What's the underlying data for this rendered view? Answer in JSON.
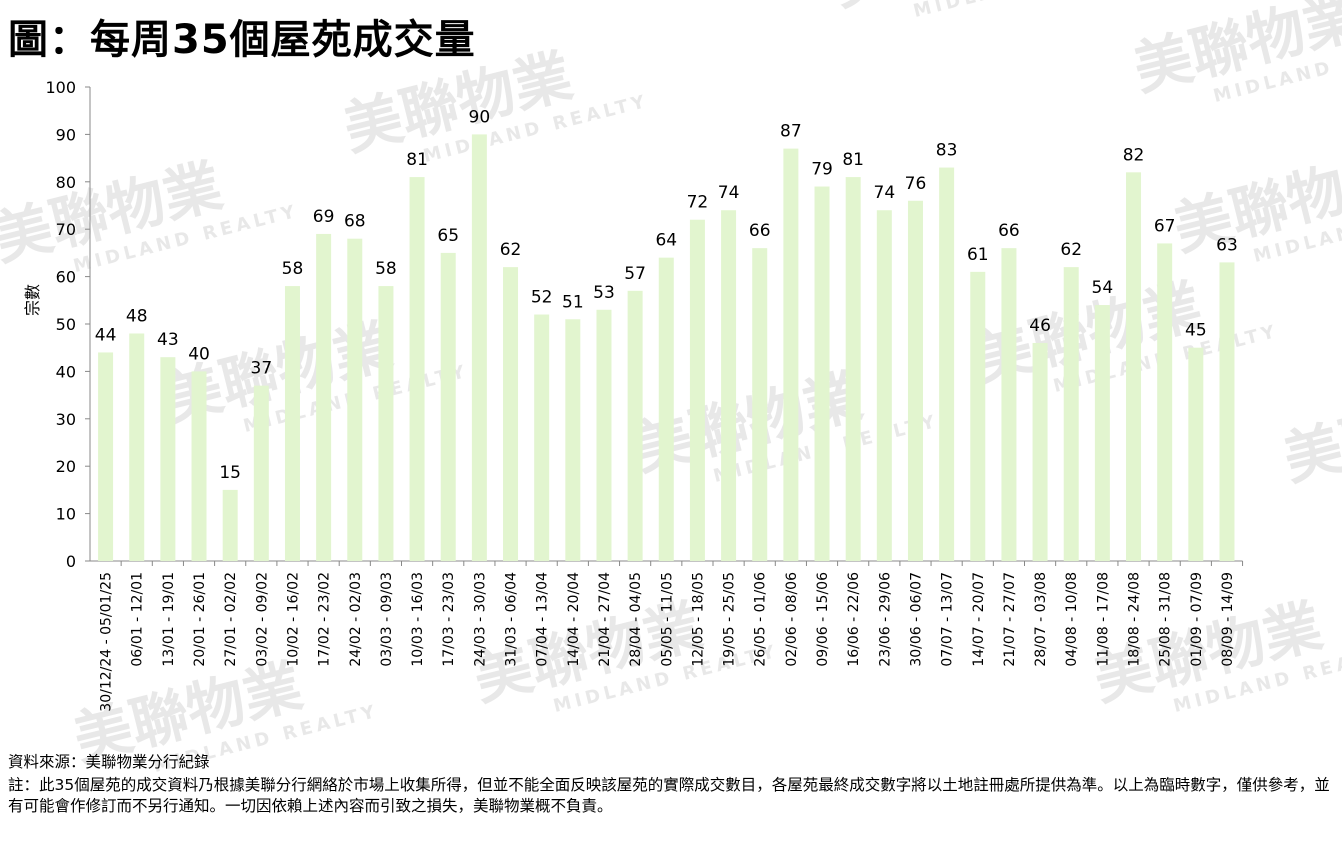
{
  "title": "圖：每周35個屋苑成交量",
  "chart_data": {
    "type": "bar",
    "title": "圖：每周35個屋苑成交量",
    "xlabel": "",
    "ylabel": "宗數",
    "ylim": [
      0,
      100
    ],
    "yticks": [
      0,
      10,
      20,
      30,
      40,
      50,
      60,
      70,
      80,
      90,
      100
    ],
    "grid": false,
    "legend": "none",
    "bar_color": "#e2f5cf",
    "categories": [
      "30/12/24 - 05/01/25",
      "06/01 - 12/01",
      "13/01 - 19/01",
      "20/01 - 26/01",
      "27/01 - 02/02",
      "03/02 - 09/02",
      "10/02 - 16/02",
      "17/02 - 23/02",
      "24/02 - 02/03",
      "03/03 - 09/03",
      "10/03 - 16/03",
      "17/03 - 23/03",
      "24/03 - 30/03",
      "31/03 - 06/04",
      "07/04 - 13/04",
      "14/04 - 20/04",
      "21/04 - 27/04",
      "28/04 - 04/05",
      "05/05 - 11/05",
      "12/05 - 18/05",
      "19/05 - 25/05",
      "26/05 - 01/06",
      "02/06 - 08/06",
      "09/06 - 15/06",
      "16/06 - 22/06",
      "23/06 - 29/06",
      "30/06 - 06/07",
      "07/07 - 13/07",
      "14/07 - 20/07",
      "21/07 - 27/07",
      "28/07 - 03/08",
      "04/08 - 10/08",
      "11/08 - 17/08",
      "18/08 - 24/08",
      "25/08 - 31/08",
      "01/09 - 07/09",
      "08/09 - 14/09"
    ],
    "values": [
      44,
      48,
      43,
      40,
      15,
      37,
      58,
      69,
      68,
      58,
      81,
      65,
      90,
      62,
      52,
      51,
      53,
      57,
      64,
      72,
      74,
      66,
      87,
      79,
      81,
      74,
      76,
      83,
      61,
      66,
      46,
      62,
      54,
      82,
      67,
      45,
      63
    ]
  },
  "watermark": {
    "brand_zh": "美聯物業",
    "brand_en": "MIDLAND REALTY",
    "color": "#e8e8e8"
  },
  "footer": {
    "source": "資料來源：美聯物業分行紀錄",
    "note": "註：此35個屋苑的成交資料乃根據美聯分行網絡於市場上收集所得，但並不能全面反映該屋苑的實際成交數目，各屋苑最終成交數字將以土地註冊處所提供為準。以上為臨時數字，僅供參考，並有可能會作修訂而不另行通知。一切因依賴上述內容而引致之損失，美聯物業概不負責。"
  }
}
